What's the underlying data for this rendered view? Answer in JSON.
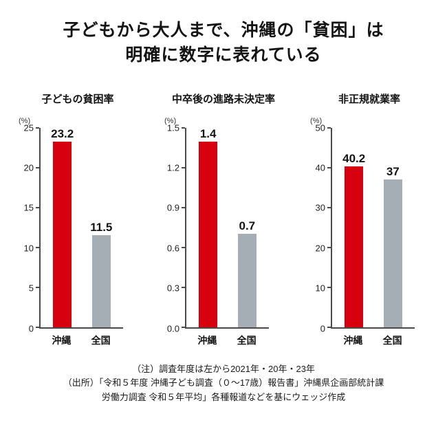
{
  "title": {
    "line1": "子どもから大人まで、沖縄の「貧困」は",
    "line2": "明確に数字に表れている"
  },
  "colors": {
    "okinawa_bar": "#d7000f",
    "national_bar": "#a5aeb5",
    "axis": "#4a4a4a",
    "text": "#141414"
  },
  "chart_data": [
    {
      "type": "bar",
      "title": "子どもの貧困率",
      "unit": "(%)",
      "categories": [
        "沖縄",
        "全国"
      ],
      "values": [
        23.2,
        11.5
      ],
      "value_labels": [
        "23.2",
        "11.5"
      ],
      "ylim": [
        0,
        25
      ],
      "yticks": [
        0,
        5,
        10,
        15,
        20,
        25
      ],
      "ytick_labels": [
        "0",
        "5",
        "10",
        "15",
        "20",
        "25"
      ],
      "colors": [
        "#d7000f",
        "#a5aeb5"
      ],
      "grid": false,
      "legend": "none"
    },
    {
      "type": "bar",
      "title": "中卒後の進路未決定率",
      "unit": "(%)",
      "categories": [
        "沖縄",
        "全国"
      ],
      "values": [
        1.4,
        0.7
      ],
      "value_labels": [
        "1.4",
        "0.7"
      ],
      "ylim": [
        0,
        1.5
      ],
      "yticks": [
        0,
        0.3,
        0.6,
        0.9,
        1.2,
        1.5
      ],
      "ytick_labels": [
        "0.0",
        "0.3",
        "0.6",
        "0.9",
        "1.2",
        "1.5"
      ],
      "colors": [
        "#d7000f",
        "#a5aeb5"
      ],
      "grid": false,
      "legend": "none"
    },
    {
      "type": "bar",
      "title": "非正規就業率",
      "unit": "(%)",
      "categories": [
        "沖縄",
        "全国"
      ],
      "values": [
        40.2,
        37
      ],
      "value_labels": [
        "40.2",
        "37"
      ],
      "ylim": [
        0,
        50
      ],
      "yticks": [
        0,
        10,
        20,
        30,
        40,
        50
      ],
      "ytick_labels": [
        "0",
        "10",
        "20",
        "30",
        "40",
        "50"
      ],
      "colors": [
        "#d7000f",
        "#a5aeb5"
      ],
      "grid": false,
      "legend": "none"
    }
  ],
  "notes": [
    "（注）調査年度は左から2021年・20年・23年",
    "（出所）「令和５年度 沖縄子ども調査（０～17歳）報告書」沖縄県企画部統計課",
    "労働力調査 令和５年平均」各種報道などを基にウェッジ作成"
  ]
}
